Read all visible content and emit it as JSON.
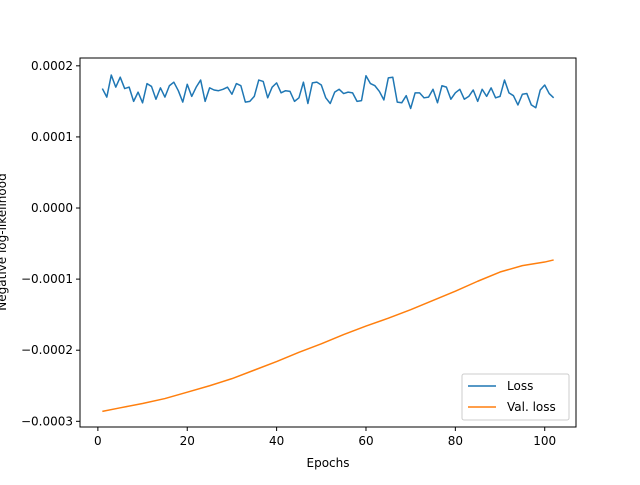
{
  "chart_data": {
    "type": "line",
    "title": "",
    "xlabel": "Epochs",
    "ylabel": "Negative log-likelihood",
    "xlim": [
      -4,
      107
    ],
    "ylim": [
      -0.000308,
      0.000211
    ],
    "xticks": [
      0,
      20,
      40,
      60,
      80,
      100
    ],
    "yticks": [
      -0.0003,
      -0.0002,
      -0.0001,
      0.0,
      0.0001,
      0.0002
    ],
    "ytick_labels": [
      "−0.0003",
      "−0.0002",
      "−0.0001",
      "0.0000",
      "0.0001",
      "0.0002"
    ],
    "grid": false,
    "legend_position": "lower-right",
    "series": [
      {
        "name": "Loss",
        "color": "#1f77b4",
        "x": [
          1,
          2,
          3,
          4,
          5,
          6,
          7,
          8,
          9,
          10,
          11,
          12,
          13,
          14,
          15,
          16,
          17,
          18,
          19,
          20,
          21,
          22,
          23,
          24,
          25,
          26,
          27,
          28,
          29,
          30,
          31,
          32,
          33,
          34,
          35,
          36,
          37,
          38,
          39,
          40,
          41,
          42,
          43,
          44,
          45,
          46,
          47,
          48,
          49,
          50,
          51,
          52,
          53,
          54,
          55,
          56,
          57,
          58,
          59,
          60,
          61,
          62,
          63,
          64,
          65,
          66,
          67,
          68,
          69,
          70,
          71,
          72,
          73,
          74,
          75,
          76,
          77,
          78,
          79,
          80,
          81,
          82,
          83,
          84,
          85,
          86,
          87,
          88,
          89,
          90,
          91,
          92,
          93,
          94,
          95,
          96,
          97,
          98,
          99,
          100,
          101,
          102
        ],
        "y": [
          0.000168,
          0.000156,
          0.000187,
          0.00017,
          0.000184,
          0.000168,
          0.00017,
          0.00015,
          0.000163,
          0.000148,
          0.000175,
          0.000171,
          0.000153,
          0.000169,
          0.000156,
          0.000172,
          0.000177,
          0.000165,
          0.000149,
          0.000174,
          0.000157,
          0.00017,
          0.00018,
          0.00015,
          0.000169,
          0.000166,
          0.000165,
          0.000167,
          0.00017,
          0.00016,
          0.000175,
          0.000172,
          0.000149,
          0.00015,
          0.000157,
          0.00018,
          0.000178,
          0.000155,
          0.00017,
          0.000176,
          0.000162,
          0.000165,
          0.000164,
          0.00015,
          0.000155,
          0.000177,
          0.000147,
          0.000176,
          0.000177,
          0.000173,
          0.000155,
          0.000147,
          0.000163,
          0.000167,
          0.000161,
          0.000163,
          0.000162,
          0.00015,
          0.000151,
          0.000186,
          0.000175,
          0.000172,
          0.000164,
          0.000152,
          0.000183,
          0.000184,
          0.000149,
          0.000148,
          0.000158,
          0.00014,
          0.000162,
          0.000162,
          0.000155,
          0.000156,
          0.000167,
          0.000148,
          0.000172,
          0.00017,
          0.000153,
          0.000162,
          0.000167,
          0.000153,
          0.000157,
          0.000166,
          0.00015,
          0.000167,
          0.000157,
          0.000169,
          0.000155,
          0.000157,
          0.00018,
          0.000162,
          0.000158,
          0.000145,
          0.00016,
          0.000161,
          0.000145,
          0.000141,
          0.000166,
          0.000173,
          0.000161,
          0.000155
        ]
      },
      {
        "name": "Val. loss",
        "color": "#ff7f0e",
        "x": [
          1,
          5,
          10,
          15,
          20,
          25,
          30,
          35,
          40,
          45,
          50,
          55,
          60,
          65,
          70,
          75,
          80,
          85,
          90,
          95,
          100,
          102
        ],
        "y": [
          -0.000286,
          -0.000281,
          -0.000275,
          -0.000268,
          -0.000259,
          -0.00025,
          -0.00024,
          -0.000228,
          -0.000216,
          -0.000203,
          -0.000191,
          -0.000178,
          -0.000166,
          -0.000155,
          -0.000143,
          -0.00013,
          -0.000117,
          -0.000103,
          -9e-05,
          -8.1e-05,
          -7.6e-05,
          -7.3e-05
        ]
      }
    ]
  }
}
